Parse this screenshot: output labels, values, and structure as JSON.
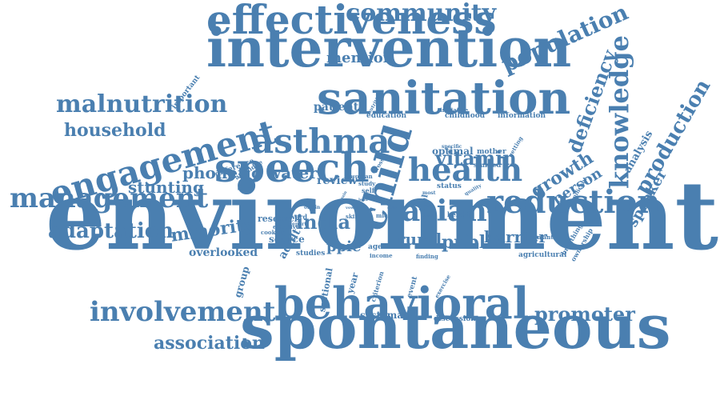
{
  "word_color": "#4a7fb0",
  "words": {
    "environment": "environment",
    "spontaneous": "spontaneous",
    "intervention": "intervention",
    "behavioral": "behavioral",
    "effectiveness": "effectiveness",
    "sanitation": "sanitation",
    "speech": "speech",
    "child": "child",
    "engagement": "engagement",
    "asthma": "asthma",
    "community": "community",
    "population": "population",
    "knowledge": "knowledge",
    "management": "management",
    "involvement": "involvement",
    "reduction": "reduction",
    "health": "health",
    "malnutrition": "malnutrition",
    "asian": "asian",
    "production": "production",
    "deficiency": "deficiency",
    "household": "household",
    "adaptation": "adaptation",
    "promoter": "promoter",
    "association": "association",
    "vitamin": "vitamin",
    "phonetic": "phonetic",
    "water": "water",
    "growth": "growth",
    "minority": "minority",
    "india": "india",
    "public": "public",
    "stunting": "stunting",
    "speaker": "speaker",
    "mention": "mention",
    "barrier": "barrier",
    "rural": "rural",
    "person": "person",
    "review": "review",
    "patient": "patient",
    "ppie": "ppie",
    "adult": "adult",
    "overlooked": "overlooked",
    "analysis": "analysis",
    "optimal": "optimal",
    "systematic": "systematic",
    "group": "group",
    "source": "source",
    "research": "research",
    "sectional": "sectional",
    "year": "year",
    "information": "information",
    "childhood": "childhood",
    "education": "education",
    "discussion": "discussion",
    "important": "important",
    "difference": "difference",
    "attendee": "attendee",
    "initiative": "initiative",
    "stunted": "stunted",
    "mother": "mother",
    "status": "status",
    "studies": "studies",
    "fuel": "fuel",
    "event": "event",
    "criterion": "criterion",
    "agricultural": "agricultural",
    "formant": "formant",
    "ownership": "ownership",
    "breathing": "breathing",
    "significant": "significant",
    "benefit": "benefit",
    "exercise": "exercise",
    "finding": "finding",
    "income": "income",
    "aged": "aged",
    "cooking": "cooking",
    "effective": "effective",
    "word": "word",
    "report": "report",
    "woman": "woman",
    "study": "study",
    "self": "self",
    "skin": "skin",
    "origin": "origin",
    "specific": "specific",
    "getting": "getting",
    "nutrition": "nutrition",
    "cross": "cross",
    "mics": "mics",
    "most": "most",
    "quality": "quality",
    "result": "result",
    "vowel": "vowel",
    "nhs": "nhs",
    "gain": "gain",
    "lead": "lead"
  }
}
